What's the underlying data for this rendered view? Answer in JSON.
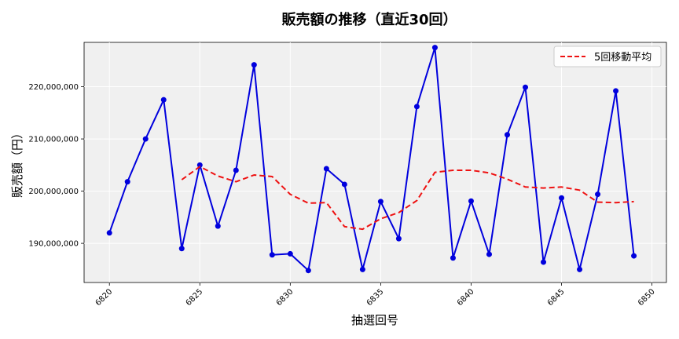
{
  "chart_data": {
    "type": "line",
    "title": "販売額の推移（直近30回）",
    "xlabel": "抽選回号",
    "ylabel": "販売額（円）",
    "xlim": [
      6818.6,
      6850.8
    ],
    "ylim": [
      182500000,
      228500000
    ],
    "x_ticks": [
      6820,
      6825,
      6830,
      6835,
      6840,
      6845,
      6850
    ],
    "x_tick_labels": [
      "6820",
      "6825",
      "6830",
      "6835",
      "6840",
      "6845",
      "6850"
    ],
    "y_ticks": [
      190000000,
      200000000,
      210000000,
      220000000
    ],
    "y_tick_labels": [
      "190,000,000",
      "200,000,000",
      "210,000,000",
      "220,000,000"
    ],
    "grid": true,
    "legend_position": "top-right",
    "series": [
      {
        "style": "solid-line-with-markers",
        "color": "#0000dd",
        "x": [
          6820,
          6821,
          6822,
          6823,
          6824,
          6825,
          6826,
          6827,
          6828,
          6829,
          6830,
          6831,
          6832,
          6833,
          6834,
          6835,
          6836,
          6837,
          6838,
          6839,
          6840,
          6841,
          6842,
          6843,
          6844,
          6845,
          6846,
          6847,
          6848,
          6849
        ],
        "y": [
          192000000,
          201800000,
          210000000,
          217500000,
          189000000,
          205000000,
          193300000,
          204000000,
          224200000,
          187800000,
          188000000,
          184800000,
          204300000,
          201300000,
          185000000,
          198000000,
          190900000,
          216200000,
          227500000,
          187200000,
          198100000,
          187900000,
          210800000,
          219900000,
          186400000,
          198700000,
          185000000,
          199400000,
          219200000,
          187600000
        ]
      },
      {
        "name": "5回移動平均",
        "style": "dashed-line",
        "color": "#ee1111",
        "x": [
          6824,
          6825,
          6826,
          6827,
          6828,
          6829,
          6830,
          6831,
          6832,
          6833,
          6834,
          6835,
          6836,
          6837,
          6838,
          6839,
          6840,
          6841,
          6842,
          6843,
          6844,
          6845,
          6846,
          6847,
          6848,
          6849
        ],
        "y": [
          202200000,
          204700000,
          202900000,
          201800000,
          203100000,
          202800000,
          199400000,
          197700000,
          197800000,
          193200000,
          192700000,
          194700000,
          195900000,
          198200000,
          203600000,
          204000000,
          204000000,
          203500000,
          202300000,
          200800000,
          200600000,
          200800000,
          200200000,
          197900000,
          197800000,
          198000000
        ]
      }
    ]
  }
}
